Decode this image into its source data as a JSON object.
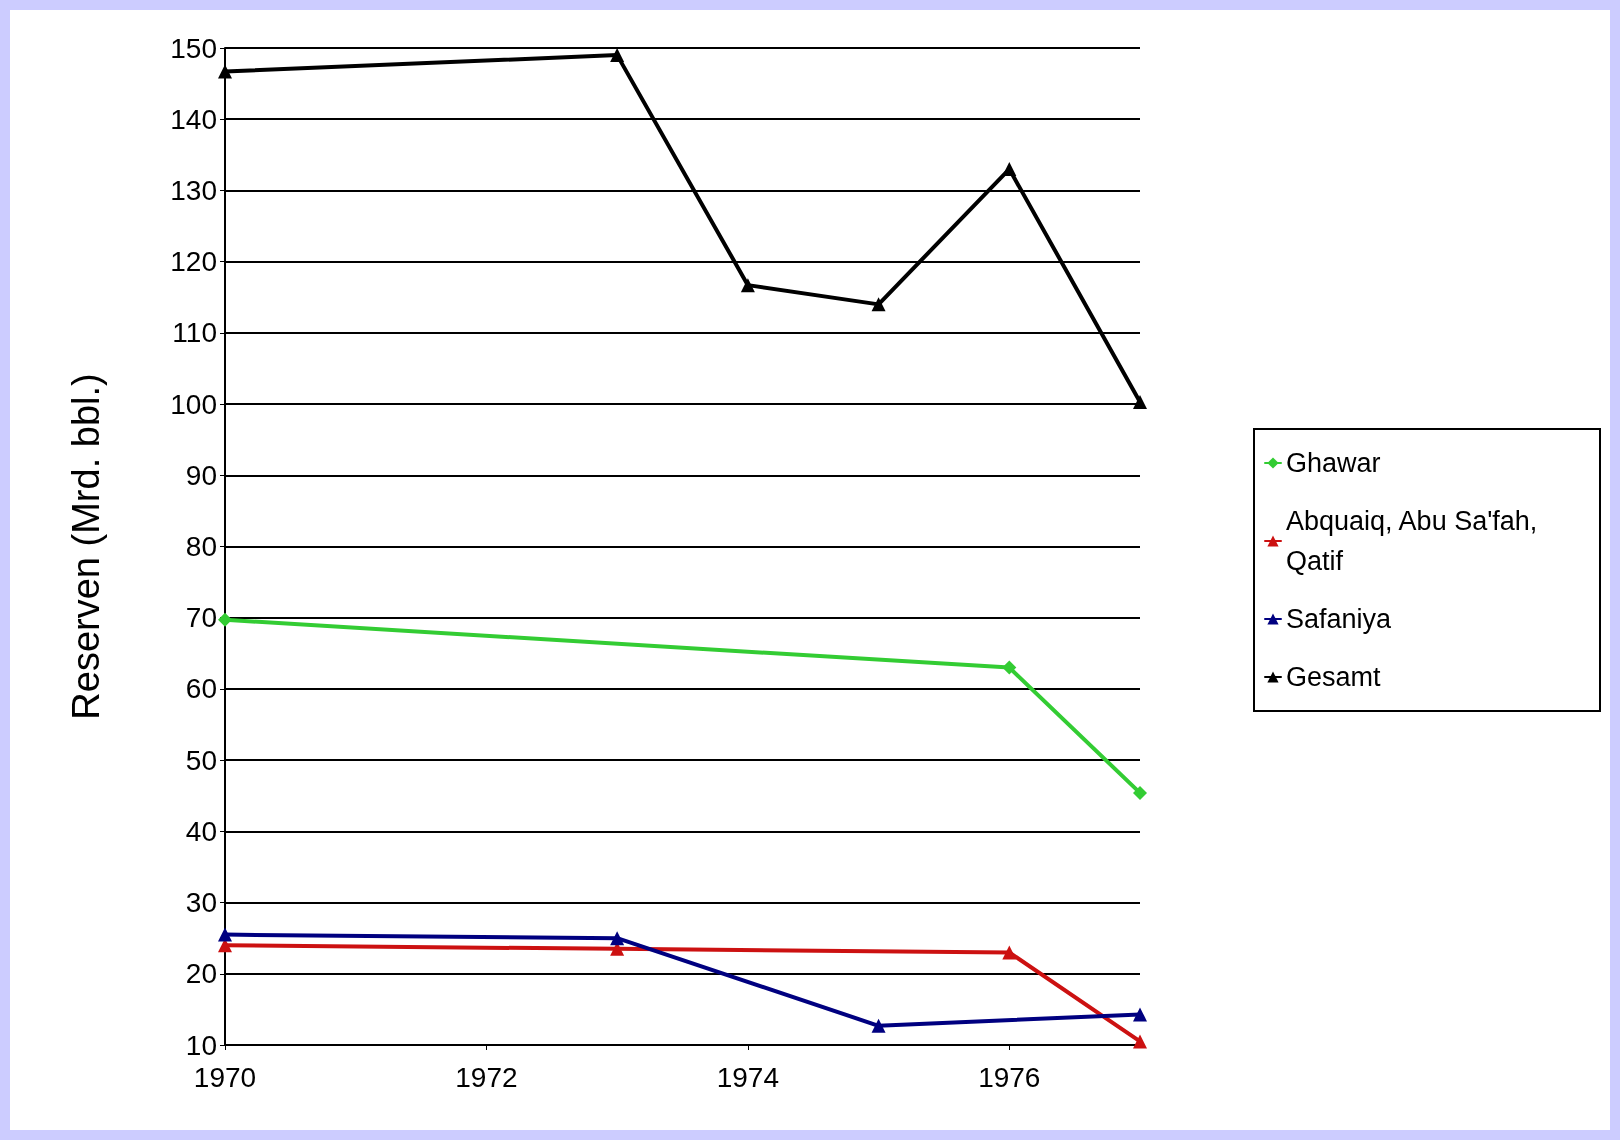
{
  "chart_data": {
    "type": "line",
    "ylabel": "Reserven (Mrd. bbl.)",
    "xlim": [
      1970,
      1977
    ],
    "xticks": [
      1970,
      1972,
      1974,
      1976
    ],
    "ylim": [
      10,
      150
    ],
    "yticks": [
      10,
      20,
      30,
      40,
      50,
      60,
      70,
      80,
      90,
      100,
      110,
      120,
      130,
      140,
      150
    ],
    "grid": "y",
    "legend": "right",
    "line_style": "solid",
    "series": [
      {
        "name": "Ghawar",
        "color": "#33cc33",
        "marker": "diamond",
        "x": [
          1970,
          1976,
          1977
        ],
        "values": [
          69.7,
          63,
          45.4
        ]
      },
      {
        "name": "Abquaiq, Abu Sa'fah, Qatif",
        "color": "#cc1111",
        "marker": "triangle",
        "x": [
          1970,
          1973,
          1976,
          1977
        ],
        "values": [
          24,
          23.5,
          23,
          10.5
        ]
      },
      {
        "name": "Safaniya",
        "color": "#000080",
        "marker": "triangle",
        "x": [
          1970,
          1973,
          1975,
          1977
        ],
        "values": [
          25.5,
          25,
          12.7,
          14.3
        ]
      },
      {
        "name": "Gesamt",
        "color": "#000000",
        "marker": "triangle",
        "x": [
          1970,
          1973,
          1974,
          1975,
          1976,
          1977
        ],
        "values": [
          146.7,
          149,
          116.7,
          114,
          133,
          100.3
        ]
      }
    ]
  }
}
